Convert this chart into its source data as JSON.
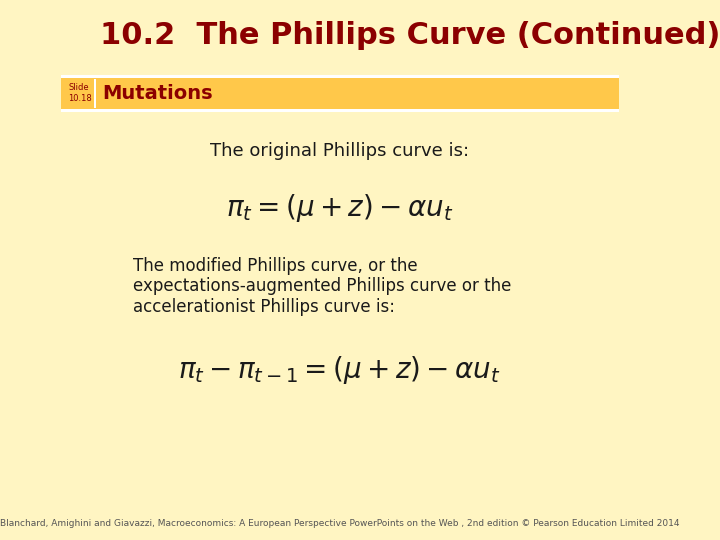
{
  "title": "10.2  The Phillips Curve (Continued)",
  "title_color": "#8B0000",
  "title_fontsize": 22,
  "slide_label": "Slide\n10.18",
  "slide_label_fontsize": 6,
  "section_title": "Mutations",
  "section_title_color": "#8B0000",
  "section_title_fontsize": 14,
  "bg_color": "#FFF5C2",
  "banner_color": "#FFC84A",
  "eq1": "$\\pi_t = (\\mu + z) - \\alpha u_t$",
  "eq2": "$\\pi_t - \\pi_{t-1} = (\\mu + z) - \\alpha u_t$",
  "text1": "The original Phillips curve is:",
  "text2_line1": "The modified Phillips curve, or the",
  "text2_line2": "expectations-augmented Phillips curve or the",
  "text2_line3": "accelerationist Phillips curve is:",
  "text_color": "#1a1a1a",
  "text_fontsize": 12,
  "eq_fontsize": 20,
  "footer": "Blanchard, Amighini and Giavazzi, Macroeconomics: A European Perspective PowerPoints on the Web , 2nd edition © Pearson Education Limited 2014",
  "footer_fontsize": 6.5
}
